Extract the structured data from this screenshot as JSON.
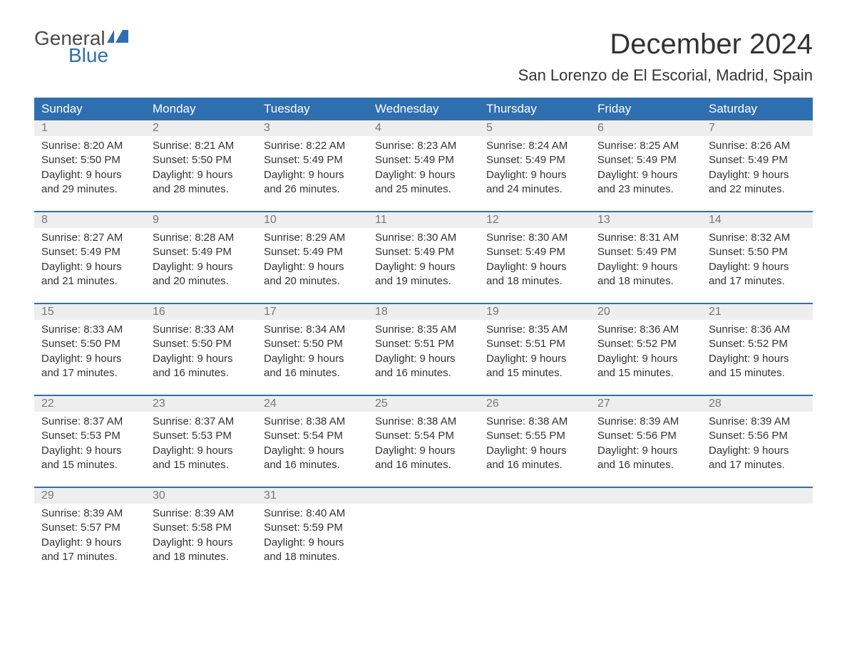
{
  "logo": {
    "line1": "General",
    "line2": "Blue"
  },
  "title": "December 2024",
  "location": "San Lorenzo de El Escorial, Madrid, Spain",
  "colors": {
    "header_bg": "#2f6fb0",
    "header_text": "#ffffff",
    "daynum_bg": "#eeeeee",
    "daynum_text": "#777777",
    "body_text": "#333333",
    "logo_gray": "#4a4a4a",
    "logo_blue": "#2f6fb0",
    "separator": "#2f6fb0",
    "page_bg": "#ffffff"
  },
  "day_headers": [
    "Sunday",
    "Monday",
    "Tuesday",
    "Wednesday",
    "Thursday",
    "Friday",
    "Saturday"
  ],
  "weeks": [
    [
      {
        "n": "1",
        "sr": "Sunrise: 8:20 AM",
        "ss": "Sunset: 5:50 PM",
        "d1": "Daylight: 9 hours",
        "d2": "and 29 minutes."
      },
      {
        "n": "2",
        "sr": "Sunrise: 8:21 AM",
        "ss": "Sunset: 5:50 PM",
        "d1": "Daylight: 9 hours",
        "d2": "and 28 minutes."
      },
      {
        "n": "3",
        "sr": "Sunrise: 8:22 AM",
        "ss": "Sunset: 5:49 PM",
        "d1": "Daylight: 9 hours",
        "d2": "and 26 minutes."
      },
      {
        "n": "4",
        "sr": "Sunrise: 8:23 AM",
        "ss": "Sunset: 5:49 PM",
        "d1": "Daylight: 9 hours",
        "d2": "and 25 minutes."
      },
      {
        "n": "5",
        "sr": "Sunrise: 8:24 AM",
        "ss": "Sunset: 5:49 PM",
        "d1": "Daylight: 9 hours",
        "d2": "and 24 minutes."
      },
      {
        "n": "6",
        "sr": "Sunrise: 8:25 AM",
        "ss": "Sunset: 5:49 PM",
        "d1": "Daylight: 9 hours",
        "d2": "and 23 minutes."
      },
      {
        "n": "7",
        "sr": "Sunrise: 8:26 AM",
        "ss": "Sunset: 5:49 PM",
        "d1": "Daylight: 9 hours",
        "d2": "and 22 minutes."
      }
    ],
    [
      {
        "n": "8",
        "sr": "Sunrise: 8:27 AM",
        "ss": "Sunset: 5:49 PM",
        "d1": "Daylight: 9 hours",
        "d2": "and 21 minutes."
      },
      {
        "n": "9",
        "sr": "Sunrise: 8:28 AM",
        "ss": "Sunset: 5:49 PM",
        "d1": "Daylight: 9 hours",
        "d2": "and 20 minutes."
      },
      {
        "n": "10",
        "sr": "Sunrise: 8:29 AM",
        "ss": "Sunset: 5:49 PM",
        "d1": "Daylight: 9 hours",
        "d2": "and 20 minutes."
      },
      {
        "n": "11",
        "sr": "Sunrise: 8:30 AM",
        "ss": "Sunset: 5:49 PM",
        "d1": "Daylight: 9 hours",
        "d2": "and 19 minutes."
      },
      {
        "n": "12",
        "sr": "Sunrise: 8:30 AM",
        "ss": "Sunset: 5:49 PM",
        "d1": "Daylight: 9 hours",
        "d2": "and 18 minutes."
      },
      {
        "n": "13",
        "sr": "Sunrise: 8:31 AM",
        "ss": "Sunset: 5:49 PM",
        "d1": "Daylight: 9 hours",
        "d2": "and 18 minutes."
      },
      {
        "n": "14",
        "sr": "Sunrise: 8:32 AM",
        "ss": "Sunset: 5:50 PM",
        "d1": "Daylight: 9 hours",
        "d2": "and 17 minutes."
      }
    ],
    [
      {
        "n": "15",
        "sr": "Sunrise: 8:33 AM",
        "ss": "Sunset: 5:50 PM",
        "d1": "Daylight: 9 hours",
        "d2": "and 17 minutes."
      },
      {
        "n": "16",
        "sr": "Sunrise: 8:33 AM",
        "ss": "Sunset: 5:50 PM",
        "d1": "Daylight: 9 hours",
        "d2": "and 16 minutes."
      },
      {
        "n": "17",
        "sr": "Sunrise: 8:34 AM",
        "ss": "Sunset: 5:50 PM",
        "d1": "Daylight: 9 hours",
        "d2": "and 16 minutes."
      },
      {
        "n": "18",
        "sr": "Sunrise: 8:35 AM",
        "ss": "Sunset: 5:51 PM",
        "d1": "Daylight: 9 hours",
        "d2": "and 16 minutes."
      },
      {
        "n": "19",
        "sr": "Sunrise: 8:35 AM",
        "ss": "Sunset: 5:51 PM",
        "d1": "Daylight: 9 hours",
        "d2": "and 15 minutes."
      },
      {
        "n": "20",
        "sr": "Sunrise: 8:36 AM",
        "ss": "Sunset: 5:52 PM",
        "d1": "Daylight: 9 hours",
        "d2": "and 15 minutes."
      },
      {
        "n": "21",
        "sr": "Sunrise: 8:36 AM",
        "ss": "Sunset: 5:52 PM",
        "d1": "Daylight: 9 hours",
        "d2": "and 15 minutes."
      }
    ],
    [
      {
        "n": "22",
        "sr": "Sunrise: 8:37 AM",
        "ss": "Sunset: 5:53 PM",
        "d1": "Daylight: 9 hours",
        "d2": "and 15 minutes."
      },
      {
        "n": "23",
        "sr": "Sunrise: 8:37 AM",
        "ss": "Sunset: 5:53 PM",
        "d1": "Daylight: 9 hours",
        "d2": "and 15 minutes."
      },
      {
        "n": "24",
        "sr": "Sunrise: 8:38 AM",
        "ss": "Sunset: 5:54 PM",
        "d1": "Daylight: 9 hours",
        "d2": "and 16 minutes."
      },
      {
        "n": "25",
        "sr": "Sunrise: 8:38 AM",
        "ss": "Sunset: 5:54 PM",
        "d1": "Daylight: 9 hours",
        "d2": "and 16 minutes."
      },
      {
        "n": "26",
        "sr": "Sunrise: 8:38 AM",
        "ss": "Sunset: 5:55 PM",
        "d1": "Daylight: 9 hours",
        "d2": "and 16 minutes."
      },
      {
        "n": "27",
        "sr": "Sunrise: 8:39 AM",
        "ss": "Sunset: 5:56 PM",
        "d1": "Daylight: 9 hours",
        "d2": "and 16 minutes."
      },
      {
        "n": "28",
        "sr": "Sunrise: 8:39 AM",
        "ss": "Sunset: 5:56 PM",
        "d1": "Daylight: 9 hours",
        "d2": "and 17 minutes."
      }
    ],
    [
      {
        "n": "29",
        "sr": "Sunrise: 8:39 AM",
        "ss": "Sunset: 5:57 PM",
        "d1": "Daylight: 9 hours",
        "d2": "and 17 minutes."
      },
      {
        "n": "30",
        "sr": "Sunrise: 8:39 AM",
        "ss": "Sunset: 5:58 PM",
        "d1": "Daylight: 9 hours",
        "d2": "and 18 minutes."
      },
      {
        "n": "31",
        "sr": "Sunrise: 8:40 AM",
        "ss": "Sunset: 5:59 PM",
        "d1": "Daylight: 9 hours",
        "d2": "and 18 minutes."
      },
      {
        "n": "",
        "sr": "",
        "ss": "",
        "d1": "",
        "d2": ""
      },
      {
        "n": "",
        "sr": "",
        "ss": "",
        "d1": "",
        "d2": ""
      },
      {
        "n": "",
        "sr": "",
        "ss": "",
        "d1": "",
        "d2": ""
      },
      {
        "n": "",
        "sr": "",
        "ss": "",
        "d1": "",
        "d2": ""
      }
    ]
  ]
}
